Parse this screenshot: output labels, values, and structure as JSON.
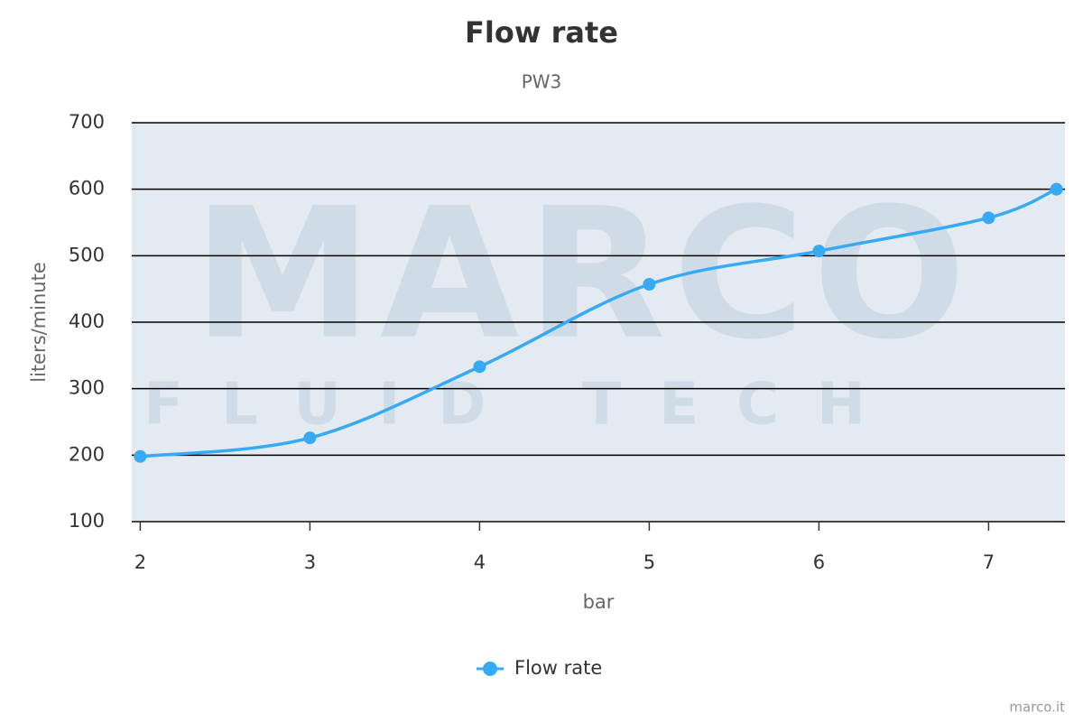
{
  "chart_data": {
    "type": "line",
    "title": "Flow rate",
    "subtitle": "PW3",
    "x_label": "bar",
    "y_label": "liters/minute",
    "x": [
      2,
      3,
      4,
      5,
      6,
      7,
      7.4
    ],
    "series": [
      {
        "name": "Flow rate",
        "color": "#36aaf4",
        "values": [
          198,
          226,
          333,
          457,
          507,
          557,
          600
        ]
      }
    ],
    "xlim": [
      1.95,
      7.45
    ],
    "xticks": [
      2,
      3,
      4,
      5,
      6,
      7
    ],
    "ylim": [
      100,
      700
    ],
    "yticks": [
      100,
      200,
      300,
      400,
      500,
      600,
      700
    ],
    "grid": true,
    "legend": "bottom",
    "watermark": {
      "brand": "MARCO",
      "tagline": "FLUID TECH"
    },
    "credit": "marco.it"
  }
}
